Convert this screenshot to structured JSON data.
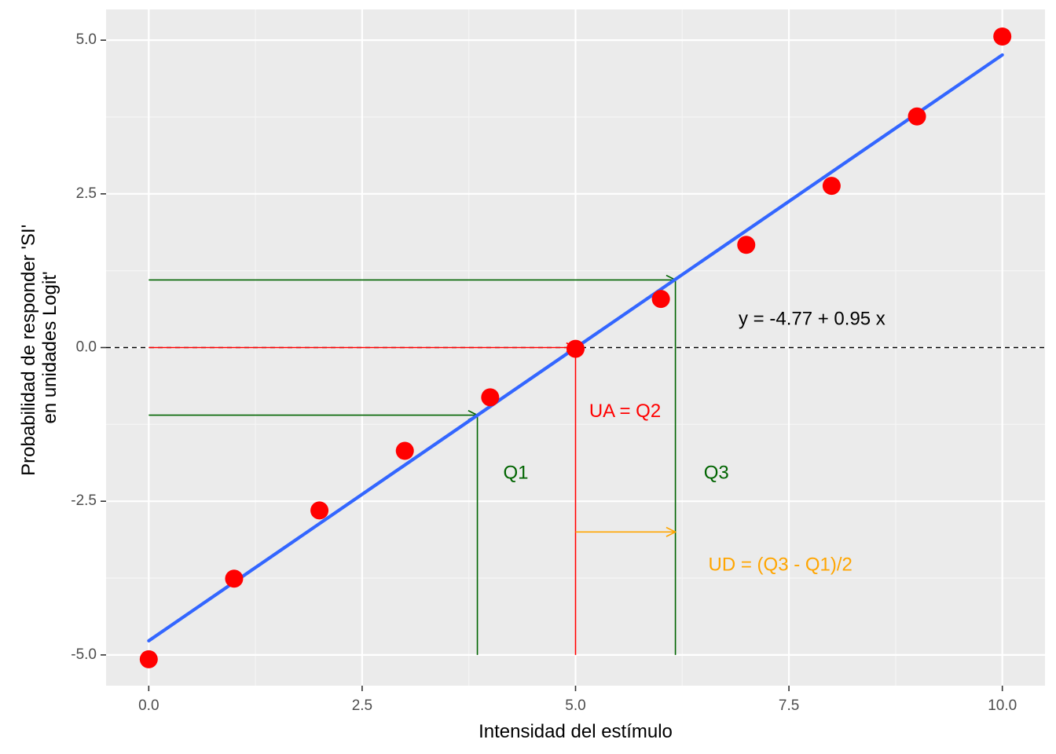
{
  "chart_data": {
    "type": "scatter",
    "xlabel": "Intensidad del estímulo",
    "ylabel_lines": [
      "Probabilidad de responder 'SI'",
      "en unidades Logit'"
    ],
    "xlim": [
      -0.5,
      10.5
    ],
    "ylim": [
      -5.5,
      5.5
    ],
    "x_ticks": [
      0,
      2.5,
      5,
      7.5,
      10
    ],
    "x_tick_labels": [
      "0.0",
      "2.5",
      "5.0",
      "7.5",
      "10.0"
    ],
    "y_ticks": [
      -5,
      -2.5,
      0,
      2.5,
      5
    ],
    "y_tick_labels": [
      "-5.0",
      "-2.5",
      "0.0",
      "2.5",
      "5.0"
    ],
    "grid": true,
    "points": {
      "x": [
        0,
        1,
        2,
        3,
        4,
        5,
        6,
        7,
        8,
        9,
        10
      ],
      "y": [
        -5.07,
        -3.76,
        -2.65,
        -1.68,
        -0.81,
        -0.02,
        0.79,
        1.67,
        2.63,
        3.76,
        5.06
      ],
      "color": "#ff0000"
    },
    "fit_line": {
      "intercept": -4.77,
      "slope": 0.953,
      "x_range": [
        0,
        10
      ],
      "color": "#3366ff"
    },
    "reference_lines": [
      {
        "type": "hline",
        "y": 0,
        "style": "dashed",
        "color": "#000000"
      }
    ],
    "arrows": [
      {
        "name": "q2-horizontal",
        "from": [
          0,
          0
        ],
        "to": [
          5,
          0
        ],
        "color": "#ff0000"
      },
      {
        "name": "q1-horizontal",
        "from": [
          0,
          -1.1
        ],
        "to": [
          3.85,
          -1.1
        ],
        "color": "#006400"
      },
      {
        "name": "q3-horizontal",
        "from": [
          0,
          1.1
        ],
        "to": [
          6.17,
          1.1
        ],
        "color": "#006400"
      },
      {
        "name": "ud-horizontal",
        "from": [
          5,
          -3
        ],
        "to": [
          6.17,
          -3
        ],
        "color": "#ffa500"
      }
    ],
    "segments": [
      {
        "name": "q1-vertical",
        "from": [
          3.85,
          -5
        ],
        "to": [
          3.85,
          -1.1
        ],
        "color": "#006400"
      },
      {
        "name": "q2-vertical",
        "from": [
          5,
          -5
        ],
        "to": [
          5,
          0
        ],
        "color": "#ff0000"
      },
      {
        "name": "q3-vertical",
        "from": [
          6.17,
          -5
        ],
        "to": [
          6.17,
          1.1
        ],
        "color": "#006400"
      }
    ],
    "annotations": [
      {
        "name": "equation",
        "text": "y =  -4.77  +  0.95 x",
        "x": 7.77,
        "y": 0.45,
        "color": "#000000"
      },
      {
        "name": "ua-label",
        "text": "UA = Q2",
        "x": 5.58,
        "y": -1.05,
        "color": "#ff0000"
      },
      {
        "name": "q1-label",
        "text": "Q1",
        "x": 4.3,
        "y": -2.05,
        "color": "#006400"
      },
      {
        "name": "q3-label",
        "text": "Q3",
        "x": 6.65,
        "y": -2.05,
        "color": "#006400"
      },
      {
        "name": "ud-label",
        "text": "UD = (Q3 - Q1)/2",
        "x": 7.4,
        "y": -3.55,
        "color": "#ffa500"
      }
    ],
    "colors": {
      "panel_background": "#ebebeb",
      "grid_major": "#ffffff",
      "grid_minor": "#f5f5f5"
    }
  }
}
